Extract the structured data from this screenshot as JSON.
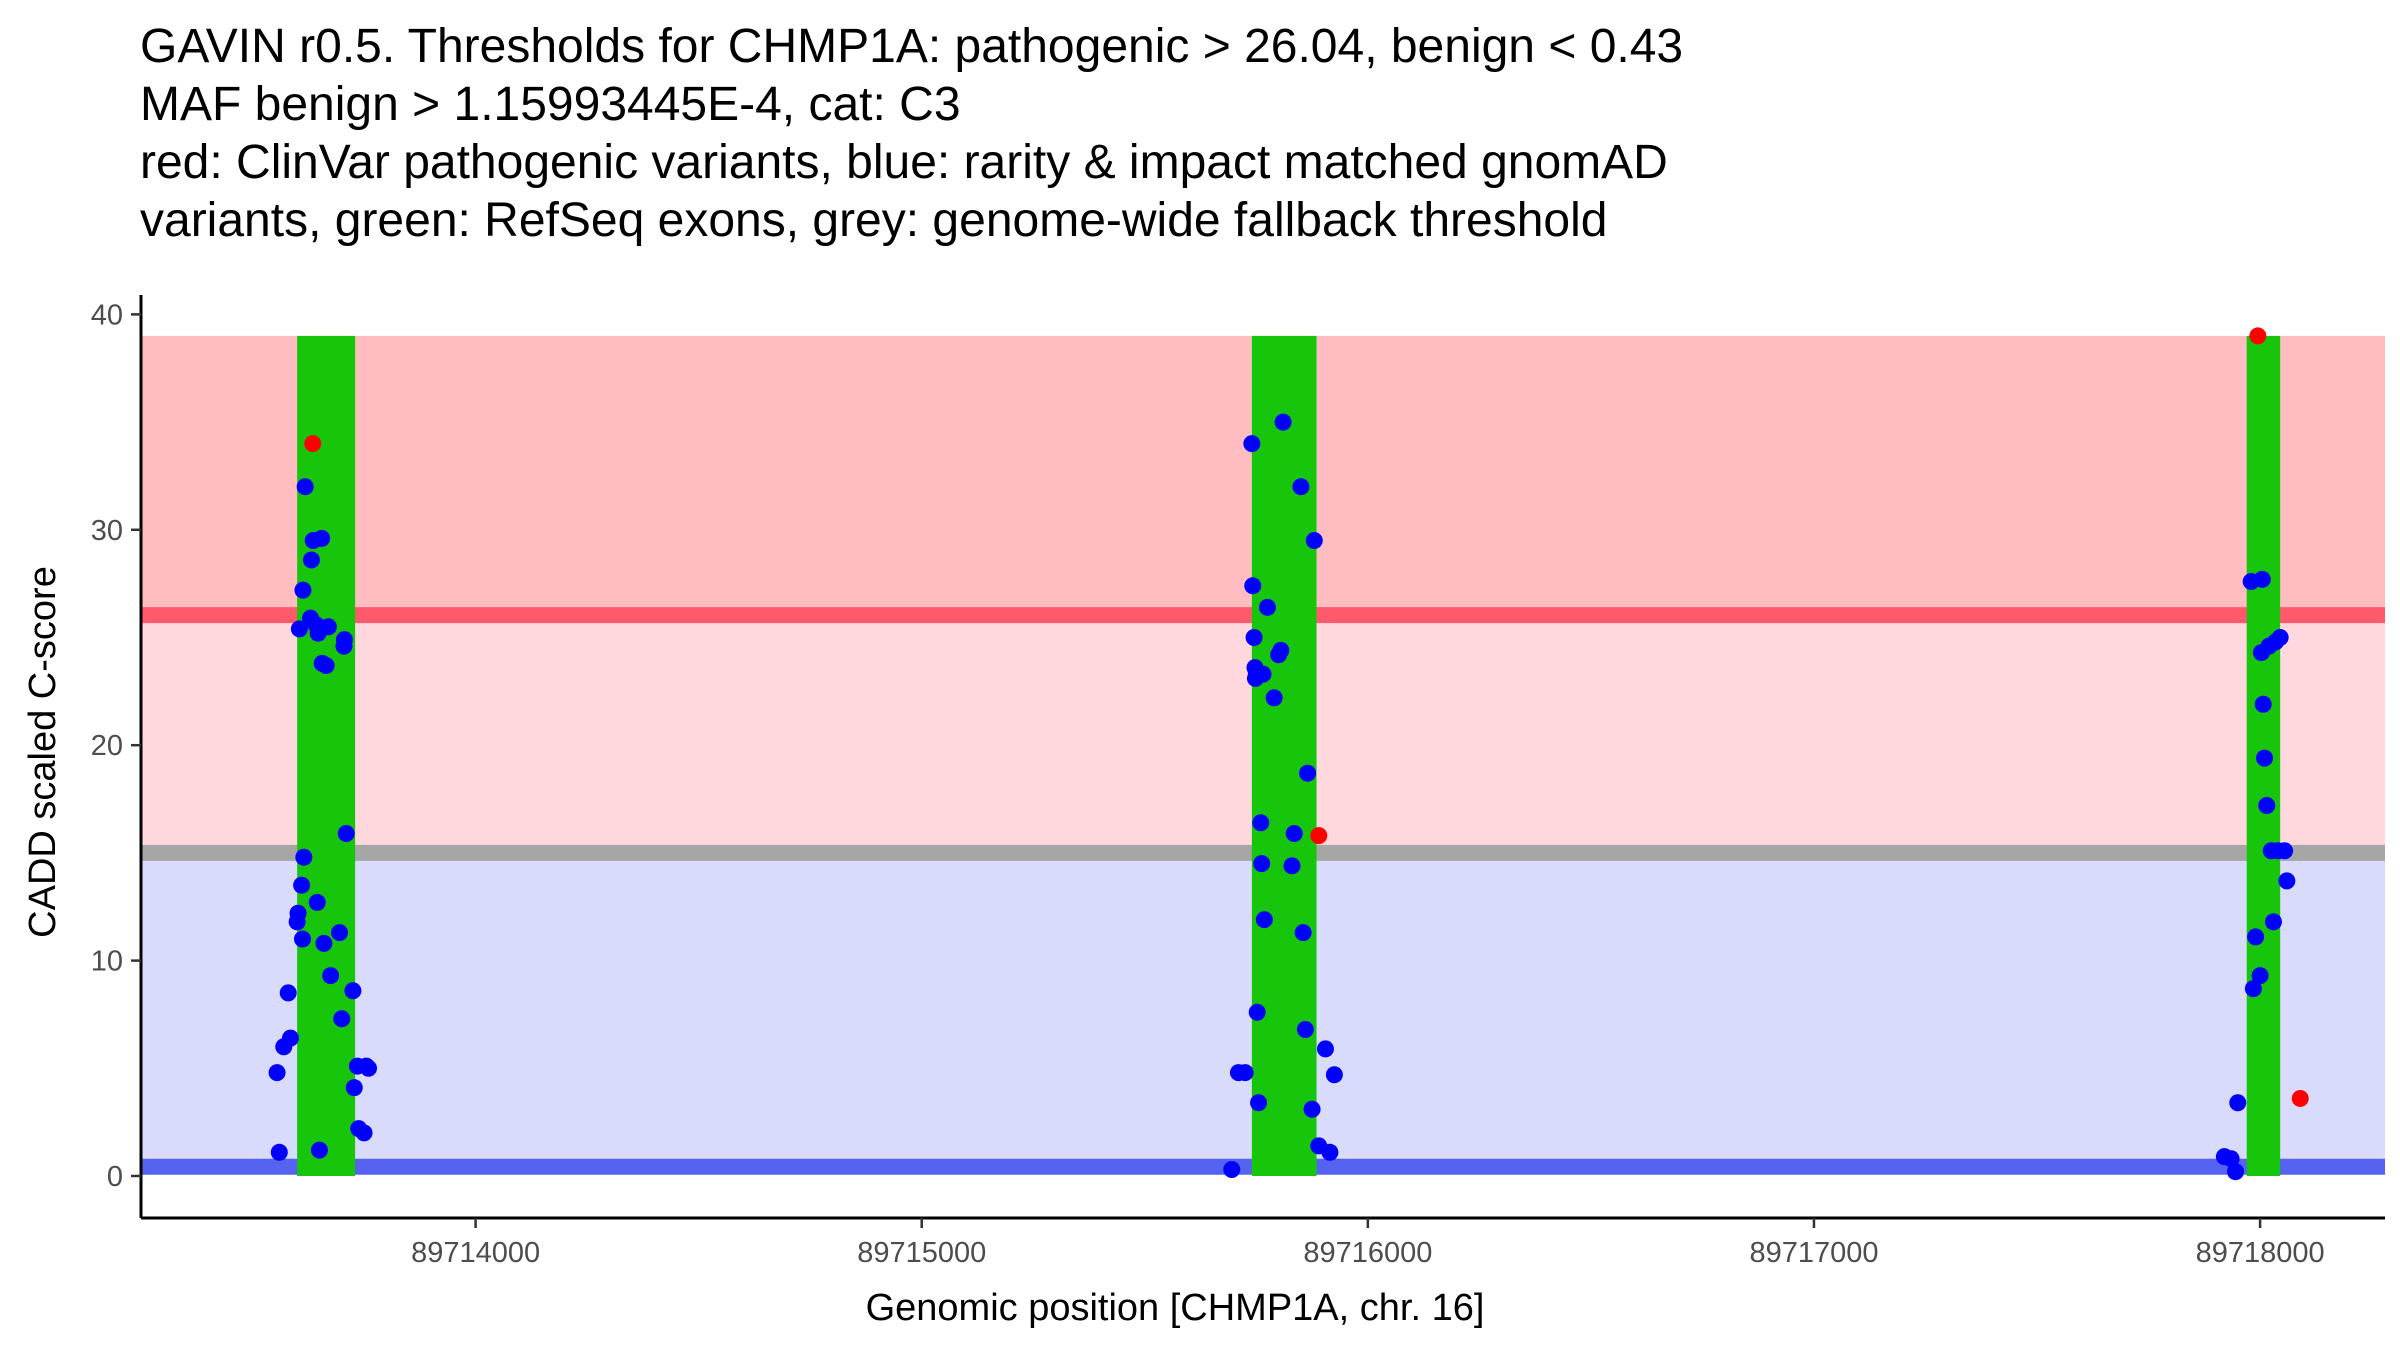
{
  "title_lines": [
    "GAVIN r0.5. Thresholds for CHMP1A: pathogenic > 26.04, benign < 0.43",
    "MAF benign > 1.15993445E-4, cat: C3",
    "red: ClinVar pathogenic variants, blue: rarity & impact matched gnomAD",
    "variants, green: RefSeq exons, grey: genome-wide fallback threshold"
  ],
  "colors": {
    "pathogenic_region": "#ffbcc1",
    "pathogenic_line": "#ff5a6b",
    "vus_region": "#ffd8de",
    "fallback_line": "#a6a6a6",
    "benign_region": "#d8dbfb",
    "benign_line": "#5563f0",
    "exon": "#17c60b",
    "clinvar_point": "#ff0000",
    "gnomad_point": "#0000ff"
  },
  "chart_data": {
    "type": "scatter",
    "xlabel": "Genomic position [CHMP1A, chr. 16]",
    "ylabel": "CADD scaled C-score",
    "xlim": [
      89713250,
      89718280
    ],
    "ylim": [
      -1.95,
      40.9
    ],
    "x_ticks": [
      89714000,
      89715000,
      89716000,
      89717000,
      89718000
    ],
    "x_tick_labels": [
      "89714000",
      "89715000",
      "89716000",
      "89717000",
      "89718000"
    ],
    "y_ticks": [
      0,
      10,
      20,
      30,
      40
    ],
    "y_tick_labels": [
      "0",
      "10",
      "20",
      "30",
      "40"
    ],
    "thresholds": {
      "pathogenic": 26.04,
      "benign": 0.43,
      "fallback": 15.0,
      "max_score": 39.0
    },
    "exons": [
      {
        "start": 89713600,
        "end": 89713730
      },
      {
        "start": 89715740,
        "end": 89715885
      },
      {
        "start": 89717970,
        "end": 89718045
      }
    ],
    "clinvar_pathogenic": [
      {
        "x": 89713635,
        "y": 34.0
      },
      {
        "x": 89715890,
        "y": 15.8
      },
      {
        "x": 89717995,
        "y": 39.0
      },
      {
        "x": 89718090,
        "y": 3.6
      }
    ],
    "gnomad_matched": [
      {
        "x": 89713555,
        "y": 4.8
      },
      {
        "x": 89713560,
        "y": 1.1
      },
      {
        "x": 89713570,
        "y": 6.0
      },
      {
        "x": 89713580,
        "y": 8.5
      },
      {
        "x": 89713585,
        "y": 6.4
      },
      {
        "x": 89713600,
        "y": 11.8
      },
      {
        "x": 89713602,
        "y": 12.2
      },
      {
        "x": 89713605,
        "y": 25.4
      },
      {
        "x": 89713610,
        "y": 13.5
      },
      {
        "x": 89713612,
        "y": 11.0
      },
      {
        "x": 89713613,
        "y": 27.2
      },
      {
        "x": 89713615,
        "y": 14.8
      },
      {
        "x": 89713618,
        "y": 32.0
      },
      {
        "x": 89713630,
        "y": 25.9
      },
      {
        "x": 89713632,
        "y": 28.6
      },
      {
        "x": 89713636,
        "y": 29.5
      },
      {
        "x": 89713642,
        "y": 25.6
      },
      {
        "x": 89713645,
        "y": 12.7
      },
      {
        "x": 89713647,
        "y": 25.2
      },
      {
        "x": 89713650,
        "y": 1.2
      },
      {
        "x": 89713655,
        "y": 29.6
      },
      {
        "x": 89713656,
        "y": 23.8
      },
      {
        "x": 89713660,
        "y": 10.8
      },
      {
        "x": 89713665,
        "y": 23.7
      },
      {
        "x": 89713670,
        "y": 25.5
      },
      {
        "x": 89713675,
        "y": 9.3
      },
      {
        "x": 89713695,
        "y": 11.3
      },
      {
        "x": 89713700,
        "y": 7.3
      },
      {
        "x": 89713705,
        "y": 24.6
      },
      {
        "x": 89713706,
        "y": 24.9
      },
      {
        "x": 89713710,
        "y": 15.9
      },
      {
        "x": 89713725,
        "y": 8.6
      },
      {
        "x": 89713728,
        "y": 4.1
      },
      {
        "x": 89713735,
        "y": 5.1
      },
      {
        "x": 89713738,
        "y": 2.2
      },
      {
        "x": 89713750,
        "y": 2.0
      },
      {
        "x": 89713755,
        "y": 5.1
      },
      {
        "x": 89713760,
        "y": 5.0
      },
      {
        "x": 89715695,
        "y": 0.3
      },
      {
        "x": 89715710,
        "y": 4.8
      },
      {
        "x": 89715725,
        "y": 4.8
      },
      {
        "x": 89715740,
        "y": 34.0
      },
      {
        "x": 89715742,
        "y": 27.4
      },
      {
        "x": 89715745,
        "y": 25.0
      },
      {
        "x": 89715747,
        "y": 23.6
      },
      {
        "x": 89715748,
        "y": 23.1
      },
      {
        "x": 89715750,
        "y": 23.4
      },
      {
        "x": 89715752,
        "y": 7.6
      },
      {
        "x": 89715755,
        "y": 3.4
      },
      {
        "x": 89715760,
        "y": 16.4
      },
      {
        "x": 89715762,
        "y": 14.5
      },
      {
        "x": 89715765,
        "y": 23.3
      },
      {
        "x": 89715768,
        "y": 11.9
      },
      {
        "x": 89715775,
        "y": 26.4
      },
      {
        "x": 89715790,
        "y": 22.2
      },
      {
        "x": 89715800,
        "y": 24.2
      },
      {
        "x": 89715805,
        "y": 24.4
      },
      {
        "x": 89715810,
        "y": 35.0
      },
      {
        "x": 89715830,
        "y": 14.4
      },
      {
        "x": 89715835,
        "y": 15.9
      },
      {
        "x": 89715850,
        "y": 32.0
      },
      {
        "x": 89715855,
        "y": 11.3
      },
      {
        "x": 89715860,
        "y": 6.8
      },
      {
        "x": 89715865,
        "y": 18.7
      },
      {
        "x": 89715875,
        "y": 3.1
      },
      {
        "x": 89715880,
        "y": 29.5
      },
      {
        "x": 89715890,
        "y": 1.4
      },
      {
        "x": 89715905,
        "y": 5.9
      },
      {
        "x": 89715915,
        "y": 1.1
      },
      {
        "x": 89715925,
        "y": 4.7
      },
      {
        "x": 89717920,
        "y": 0.9
      },
      {
        "x": 89717935,
        "y": 0.8
      },
      {
        "x": 89717945,
        "y": 0.2
      },
      {
        "x": 89717950,
        "y": 3.4
      },
      {
        "x": 89717980,
        "y": 27.6
      },
      {
        "x": 89717985,
        "y": 8.7
      },
      {
        "x": 89717990,
        "y": 11.1
      },
      {
        "x": 89718000,
        "y": 9.3
      },
      {
        "x": 89718003,
        "y": 24.3
      },
      {
        "x": 89718005,
        "y": 27.7
      },
      {
        "x": 89718007,
        "y": 21.9
      },
      {
        "x": 89718010,
        "y": 19.4
      },
      {
        "x": 89718015,
        "y": 17.2
      },
      {
        "x": 89718020,
        "y": 24.6
      },
      {
        "x": 89718025,
        "y": 15.1
      },
      {
        "x": 89718030,
        "y": 11.8
      },
      {
        "x": 89718035,
        "y": 24.8
      },
      {
        "x": 89718040,
        "y": 15.1
      },
      {
        "x": 89718045,
        "y": 25.0
      },
      {
        "x": 89718055,
        "y": 15.1
      },
      {
        "x": 89718060,
        "y": 13.7
      }
    ]
  }
}
